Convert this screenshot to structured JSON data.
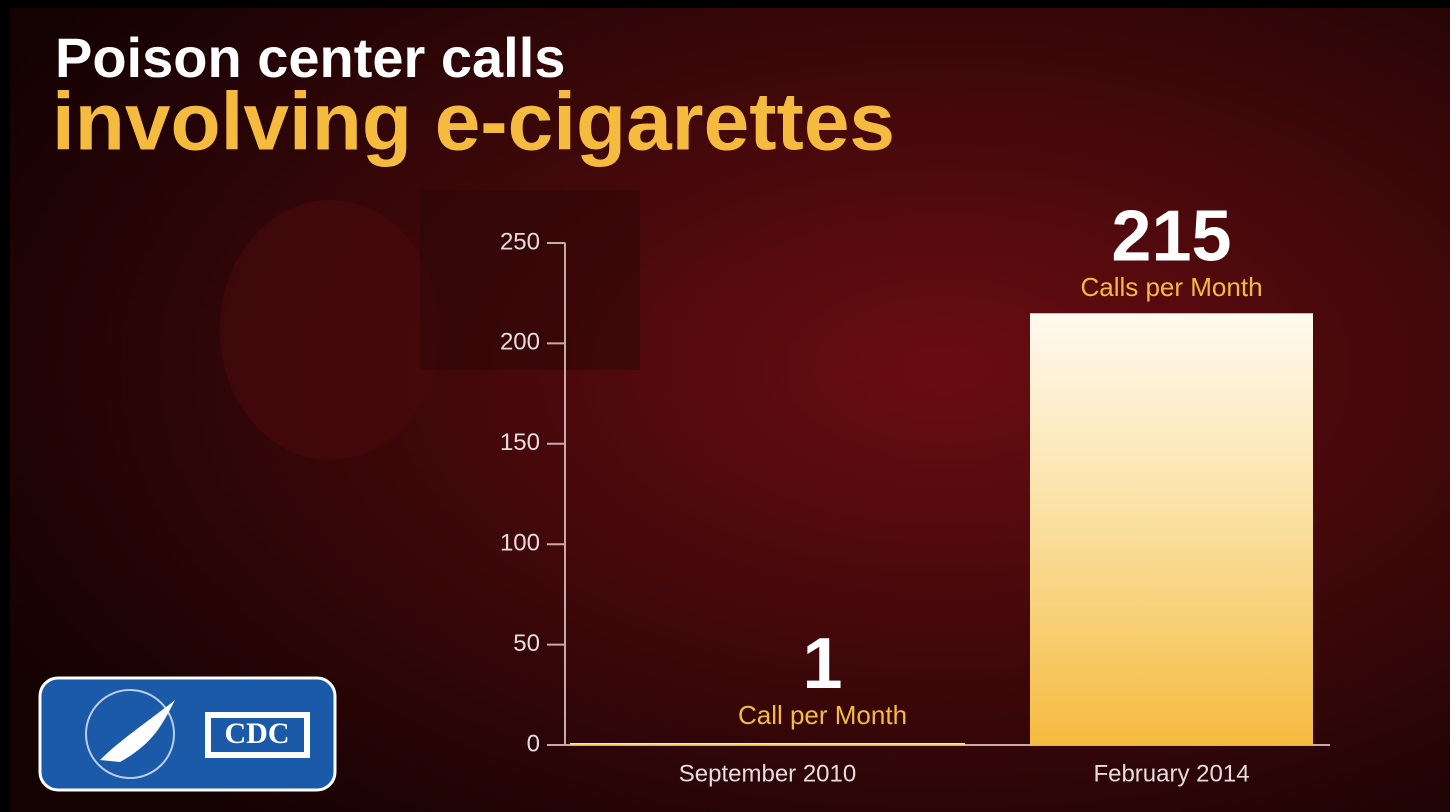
{
  "chart_data": {
    "type": "bar",
    "title": "Poison center calls",
    "subtitle": "involving e-cigarettes",
    "categories": [
      "September 2010",
      "February 2014"
    ],
    "values": [
      1,
      215
    ],
    "value_captions": [
      "Call per Month",
      "Calls per Month"
    ],
    "ylim": [
      0,
      250
    ],
    "yticks": [
      0,
      50,
      100,
      150,
      200,
      250
    ],
    "color": "#f5bb3f",
    "logo_text": "CDC"
  }
}
